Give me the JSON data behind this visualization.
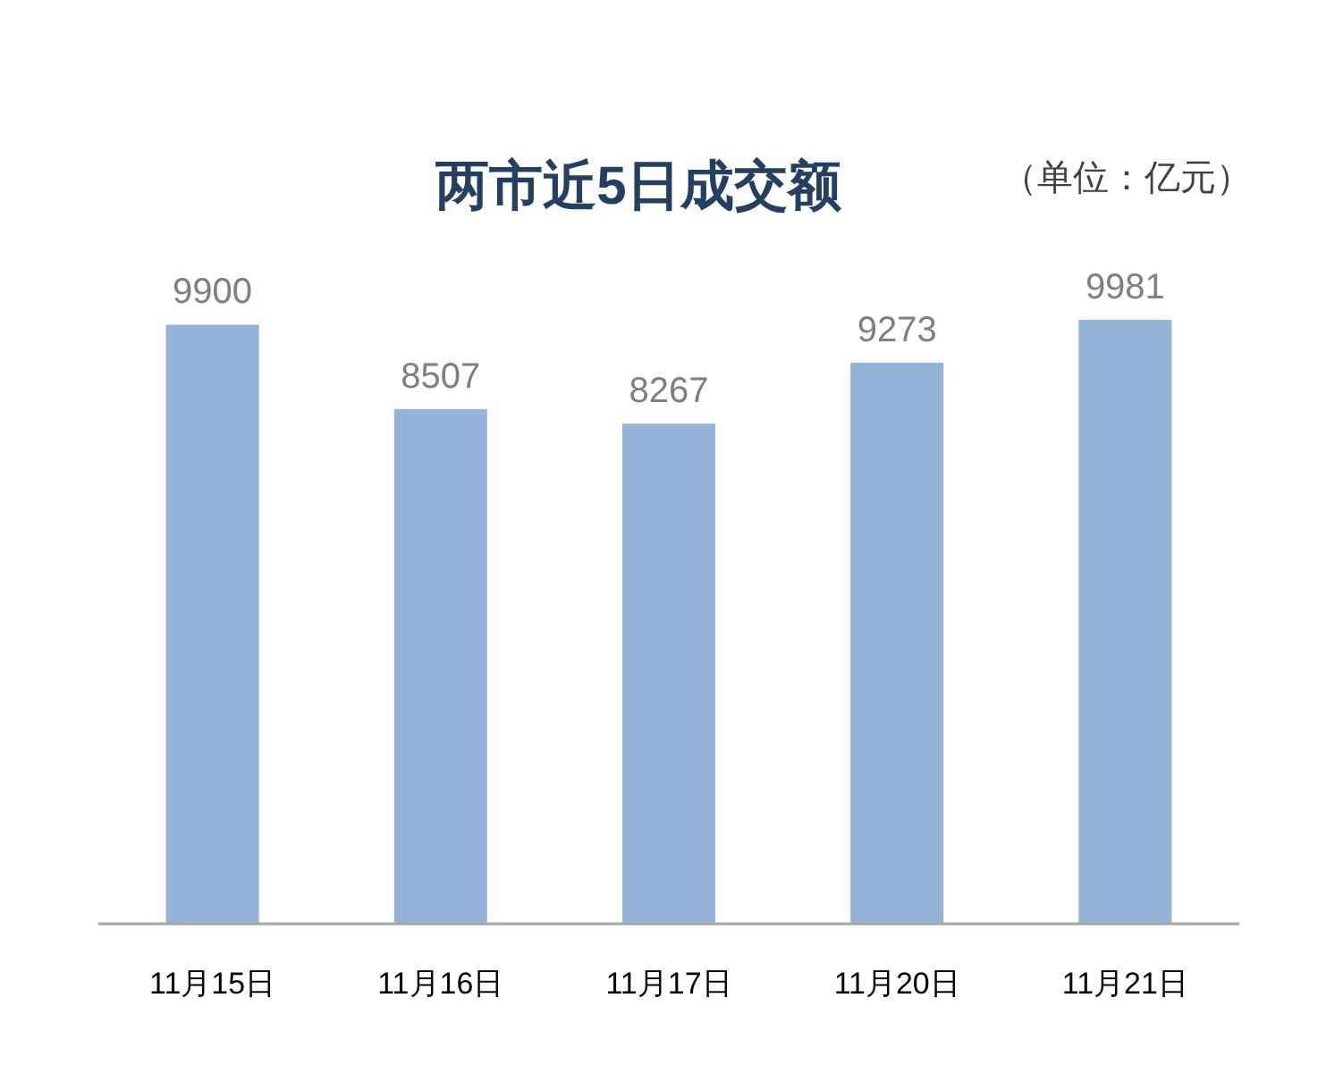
{
  "chart_data": {
    "type": "bar",
    "title": "两市近5日成交额",
    "annotations": [
      "（单位：亿元）"
    ],
    "categories": [
      "11月15日",
      "11月16日",
      "11月17日",
      "11月20日",
      "11月21日"
    ],
    "values": [
      9900,
      8507,
      8267,
      9273,
      9981
    ],
    "color": "#95b3d7",
    "data_labels": true
  }
}
